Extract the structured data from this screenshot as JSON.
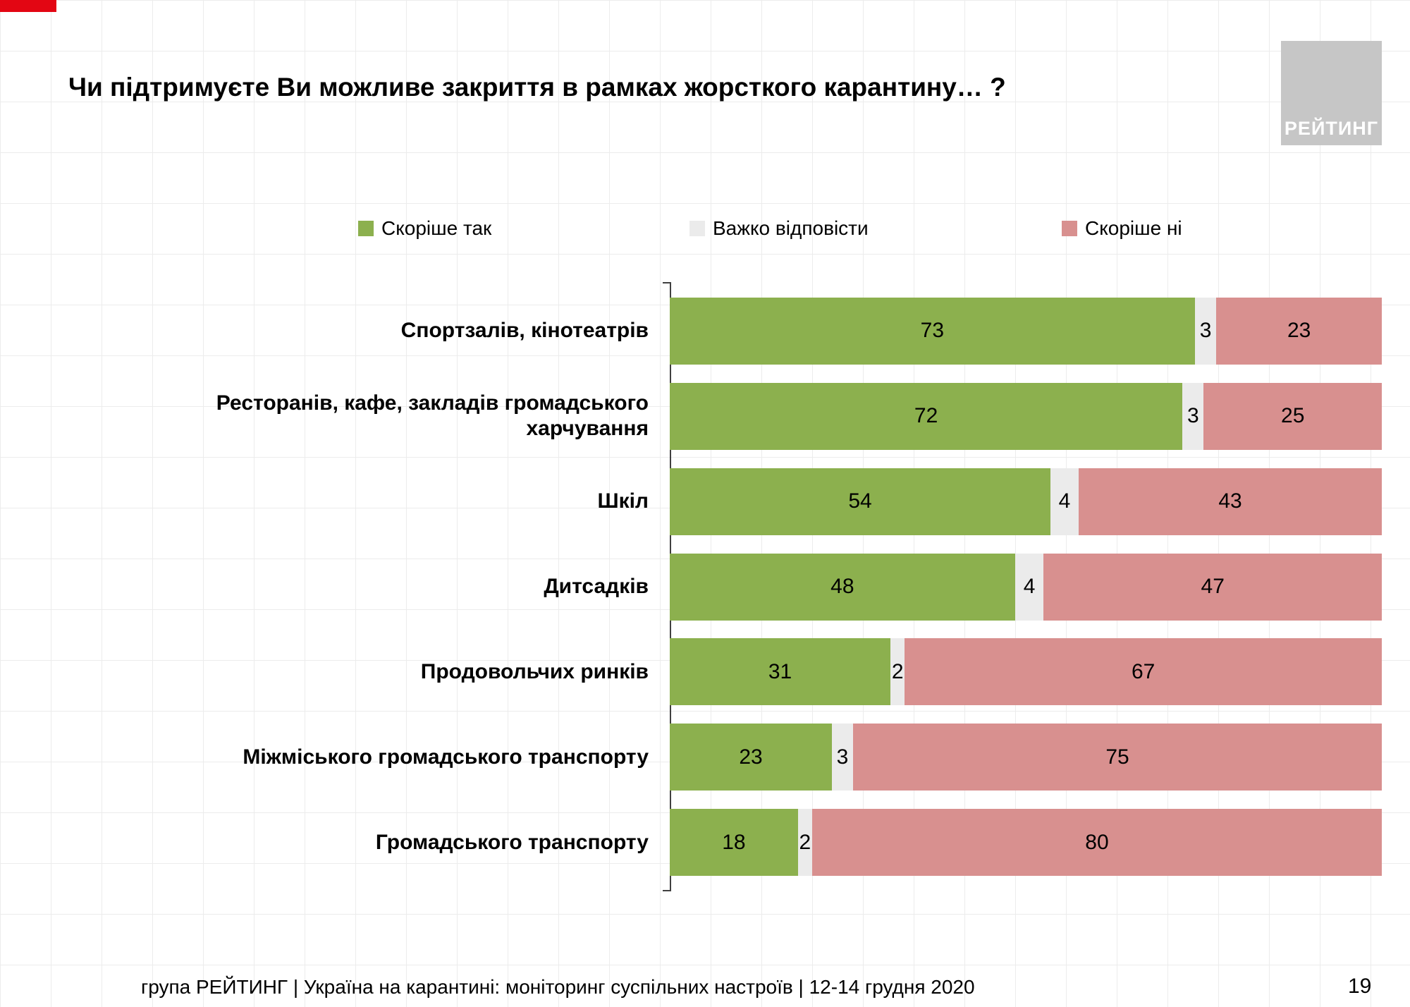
{
  "header": {
    "title": "Чи підтримуєте Ви можливе закриття в рамках жорсткого карантину… ?",
    "logo_text": "РЕЙТИНГ"
  },
  "footer": {
    "text": "група РЕЙТИНГ | Україна на карантині: моніторинг суспільних настроїв | 12-14 грудня 2020",
    "page_number": "19"
  },
  "colors": {
    "yes_green": "#8cb04e",
    "hard_gray": "#ebebeb",
    "no_pink": "#d8908f",
    "accent_red": "#e30613",
    "logo_gray": "#c6c6c6",
    "grid_line": "#ececec"
  },
  "chart_data": {
    "type": "bar",
    "orientation": "horizontal-stacked",
    "title": "Чи підтримуєте Ви можливе закриття в рамках жорсткого карантину… ?",
    "legend_position": "top",
    "grid": true,
    "xlim": [
      0,
      100
    ],
    "legend": [
      {
        "label": "Скоріше так",
        "color": "#8cb04e"
      },
      {
        "label": "Важко відповісти",
        "color": "#ebebeb"
      },
      {
        "label": "Скоріше ні",
        "color": "#d8908f"
      }
    ],
    "categories": [
      "Спортзалів, кінотеатрів",
      "Ресторанів, кафе, закладів громадського харчування",
      "Шкіл",
      "Дитсадків",
      "Продовольчих ринків",
      "Міжміського громадського транспорту",
      "Громадського транспорту"
    ],
    "series": [
      {
        "name": "Скоріше так",
        "values": [
          73,
          72,
          54,
          48,
          31,
          23,
          18
        ]
      },
      {
        "name": "Важко відповісти",
        "values": [
          3,
          3,
          4,
          4,
          2,
          3,
          2
        ]
      },
      {
        "name": "Скоріше ні",
        "values": [
          23,
          25,
          43,
          47,
          67,
          75,
          80
        ]
      }
    ]
  }
}
